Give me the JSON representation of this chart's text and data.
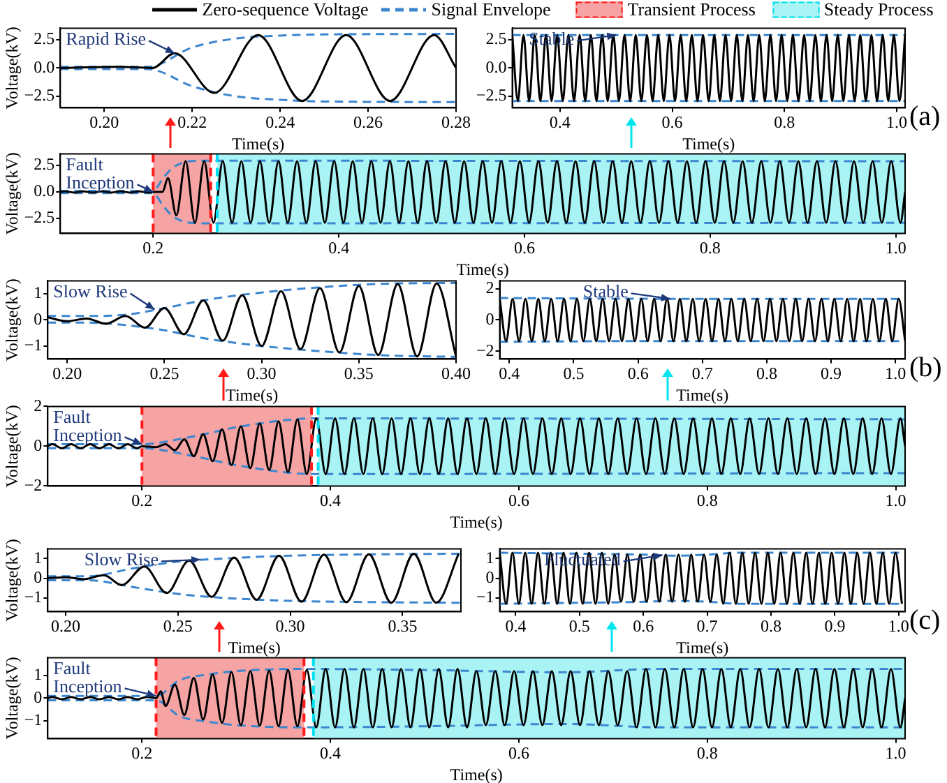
{
  "chart_data": [
    {
      "type": "line",
      "xlabel": "Time(s)",
      "ylabel": "Voltage(kV)",
      "xlim": [
        0.19,
        0.28
      ],
      "xticks": [
        {
          "value": 0.2,
          "label": "0.20"
        },
        {
          "value": 0.22,
          "label": "0.22"
        },
        {
          "value": 0.24,
          "label": "0.24"
        },
        {
          "value": 0.26,
          "label": "0.26"
        },
        {
          "value": 0.28,
          "label": "0.28"
        }
      ],
      "ylim": [
        -3.5,
        3.5
      ],
      "yticks": [
        {
          "value": -2.5,
          "label": "−2.5"
        },
        {
          "value": 0,
          "label": "0.0"
        },
        2.5
      ],
      "series": [
        {
          "color": "#000000",
          "x": [
            0.19,
            0.203,
            0.211,
            0.216,
            0.225,
            0.235,
            0.245,
            0.255,
            0.265,
            0.275,
            0.28
          ],
          "values": [
            0,
            0.1,
            0,
            1.3,
            -2.2,
            2.9,
            -2.9,
            2.9,
            -2.9,
            2.9,
            0
          ]
        },
        {
          "color": "#3b86cf",
          "line_style": "dashed",
          "x": [
            0.19,
            0.21,
            0.22,
            0.23,
            0.24,
            0.25,
            0.28
          ],
          "values": [
            0.1,
            0.1,
            1.8,
            2.6,
            2.85,
            2.95,
            3.0
          ]
        },
        {
          "color": "#3b86cf",
          "line_style": "dashed",
          "x": [
            0.19,
            0.21,
            0.22,
            0.23,
            0.24,
            0.25,
            0.28
          ],
          "values": [
            -0.1,
            -0.1,
            -1.6,
            -2.5,
            -2.8,
            -2.95,
            -3.0
          ]
        }
      ],
      "annotations": [
        {
          "text": "Rapid Rise",
          "x": 0.216,
          "y": 1.3
        }
      ]
    },
    {
      "type": "line",
      "xlabel": "Time(s)",
      "xlim": [
        0.315,
        1.015
      ],
      "xticks": [
        0.4,
        0.6,
        0.8,
        {
          "value": 1,
          "label": "1.0"
        }
      ],
      "ylim": [
        -3.5,
        3.5
      ],
      "yticks": [
        {
          "value": -2.5,
          "label": "−2.5"
        },
        {
          "value": 0,
          "label": "0.0"
        },
        2.5
      ],
      "series": [
        {
          "color": "#000000",
          "x": [
            0.315,
            0.325,
            0.335,
            0.345,
            0.355,
            0.365,
            0.375,
            0.385,
            0.395,
            0.405,
            0.415,
            0.425,
            0.435,
            0.445,
            0.455,
            0.465,
            0.475,
            0.485,
            0.495,
            0.505,
            0.515,
            0.525,
            0.535,
            0.545,
            0.555,
            0.565,
            0.575,
            0.585,
            0.595,
            0.605,
            0.615,
            0.625,
            0.635,
            0.645,
            0.655,
            0.665,
            0.675,
            0.685,
            0.695,
            0.705,
            0.715,
            0.725,
            0.735,
            0.745,
            0.755,
            0.765,
            0.775,
            0.785,
            0.795,
            0.805,
            0.815,
            0.825,
            0.835,
            0.845,
            0.855,
            0.865,
            0.875,
            0.885,
            0.895,
            0.905,
            0.915,
            0.925,
            0.935,
            0.945,
            0.955,
            0.965,
            0.975,
            0.985,
            0.995,
            1.005,
            1.015
          ],
          "values": [
            2.9,
            -2.9,
            2.9,
            -2.9,
            2.9,
            -2.9,
            2.9,
            -2.9,
            2.9,
            -2.9,
            2.9,
            -2.9,
            2.9,
            -2.9,
            2.9,
            -2.9,
            2.9,
            -2.9,
            2.9,
            -2.9,
            2.9,
            -2.9,
            2.9,
            -2.9,
            2.9,
            -2.9,
            2.9,
            -2.9,
            2.9,
            -2.9,
            2.9,
            -2.9,
            2.9,
            -2.9,
            2.9,
            -2.9,
            2.9,
            -2.9,
            2.9,
            -2.9,
            2.9,
            -2.9,
            2.9,
            -2.9,
            2.9,
            -2.9,
            2.9,
            -2.9,
            2.9,
            -2.9,
            2.9,
            -2.9,
            2.9,
            -2.9,
            2.9,
            -2.9,
            2.9,
            -2.9,
            2.9,
            -2.9,
            2.9,
            -2.9,
            2.9,
            -2.9,
            2.9,
            -2.9,
            2.9,
            -2.9,
            2.9,
            -2.9,
            2.9
          ]
        },
        {
          "color": "#3b86cf",
          "line_style": "dashed",
          "x": [
            0.315,
            1.015
          ],
          "values": [
            2.9,
            2.9
          ]
        },
        {
          "color": "#3b86cf",
          "line_style": "dashed",
          "x": [
            0.315,
            1.015
          ],
          "values": [
            -2.9,
            -2.9
          ]
        }
      ],
      "annotations": [
        {
          "text": "Stable",
          "x": 0.5,
          "y": 2.9
        },
        "(a)"
      ]
    },
    {
      "type": "line",
      "xlabel": "Time(s)",
      "ylabel": "Voltage(kV)",
      "legend": "top",
      "xlim": [
        0.1,
        1.01
      ],
      "xticks": [
        0.2,
        0.4,
        0.6,
        0.8,
        {
          "value": 1,
          "label": "1.0"
        }
      ],
      "ylim": [
        -3.9,
        3.6
      ],
      "yticks": [
        {
          "value": -2.5,
          "label": "−2.5"
        },
        {
          "value": 0,
          "label": "0.0"
        },
        2.5
      ],
      "bands": [
        {
          "axis": "x",
          "from": 0.2,
          "to": 0.262,
          "label": "Transient Process",
          "color": "#f5a3a3"
        },
        {
          "axis": "x",
          "from": 0.269,
          "to": 1.01,
          "label": "Steady Process",
          "color": "#aaf3f5"
        }
      ],
      "ref_lines": [
        {
          "axis": "x",
          "value": 0.2,
          "color": "#ff1a1a",
          "line_style": "dashed"
        },
        {
          "axis": "x",
          "value": 0.262,
          "color": "#ff1a1a",
          "line_style": "dashed"
        },
        {
          "axis": "x",
          "value": 0.269,
          "color": "#00e0f0",
          "line_style": "dashed"
        }
      ],
      "series": [
        {
          "name": "Zero-sequence Voltage",
          "color": "#000000",
          "x": [
            0.1,
            0.105,
            0.115,
            0.125,
            0.135,
            0.145,
            0.155,
            0.165,
            0.175,
            0.185,
            0.195,
            0.2,
            0.21,
            0.216,
            0.225,
            0.235,
            0.245,
            0.255,
            0.265,
            0.275,
            0.285,
            0.295,
            0.305,
            0.315,
            0.325,
            0.335,
            0.345,
            0.355,
            0.365,
            0.375,
            0.385,
            0.395,
            0.405,
            0.415,
            0.425,
            0.435,
            0.445,
            0.455,
            0.465,
            0.475,
            0.485,
            0.495,
            0.505,
            0.515,
            0.525,
            0.535,
            0.545,
            0.555,
            0.565,
            0.575,
            0.585,
            0.595,
            0.605,
            0.615,
            0.625,
            0.635,
            0.645,
            0.655,
            0.665,
            0.675,
            0.685,
            0.695,
            0.705,
            0.715,
            0.725,
            0.735,
            0.745,
            0.755,
            0.765,
            0.775,
            0.785,
            0.795,
            0.805,
            0.815,
            0.825,
            0.835,
            0.845,
            0.855,
            0.865,
            0.875,
            0.885,
            0.895,
            0.905,
            0.915,
            0.925,
            0.935,
            0.945,
            0.955,
            0.965,
            0.975,
            0.985,
            0.995,
            1.005,
            1.01
          ],
          "values": [
            0,
            0.05,
            -0.05,
            0.05,
            -0.05,
            0.05,
            -0.05,
            0.05,
            -0.05,
            0.05,
            -0.05,
            0,
            0,
            1.3,
            -2.2,
            2.9,
            -2.9,
            2.9,
            -2.9,
            2.9,
            -2.9,
            2.9,
            -2.9,
            2.9,
            -2.9,
            2.9,
            -2.9,
            2.9,
            -2.9,
            2.9,
            -2.9,
            2.9,
            -2.9,
            2.9,
            -2.9,
            2.9,
            -2.9,
            2.9,
            -2.9,
            2.9,
            -2.9,
            2.9,
            -2.9,
            2.9,
            -2.9,
            2.9,
            -2.9,
            2.9,
            -2.9,
            2.9,
            -2.9,
            2.9,
            -2.9,
            2.9,
            -2.9,
            2.9,
            -2.9,
            2.9,
            -2.9,
            2.9,
            -2.9,
            2.9,
            -2.9,
            2.9,
            -2.9,
            2.9,
            -2.9,
            2.9,
            -2.9,
            2.9,
            -2.9,
            2.9,
            -2.9,
            2.9,
            -2.9,
            2.9,
            -2.9,
            2.9,
            -2.9,
            2.9,
            -2.9,
            2.9,
            -2.9,
            2.9,
            -2.9,
            2.9,
            -2.9,
            2.9,
            -2.9,
            2.9,
            -2.9,
            2.9,
            -2.9,
            0
          ]
        },
        {
          "name": "Signal Envelope",
          "color": "#3b86cf",
          "line_style": "dashed",
          "x": [
            0.1,
            0.2,
            0.21,
            0.22,
            0.23,
            0.24,
            0.26,
            1.01
          ],
          "values": [
            0.1,
            0.1,
            1.2,
            2.2,
            2.7,
            2.9,
            2.95,
            2.9
          ]
        },
        {
          "color": "#3b86cf",
          "line_style": "dashed",
          "x": [
            0.1,
            0.2,
            0.21,
            0.22,
            0.23,
            0.24,
            0.26,
            1.01
          ],
          "values": [
            -0.1,
            -0.1,
            -1.2,
            -2.2,
            -2.7,
            -2.9,
            -2.95,
            -2.9
          ]
        }
      ],
      "annotations": [
        {
          "text": "Fault Inception",
          "x": 0.2,
          "y": 0
        }
      ]
    },
    {
      "type": "line",
      "xlabel": "Time(s)",
      "ylabel": "Voltage(kV)",
      "xlim": [
        0.19,
        0.4
      ],
      "xticks": [
        {
          "value": 0.2,
          "label": "0.20"
        },
        {
          "value": 0.25,
          "label": "0.25"
        },
        {
          "value": 0.3,
          "label": "0.30"
        },
        {
          "value": 0.35,
          "label": "0.35"
        },
        {
          "value": 0.4,
          "label": "0.40"
        }
      ],
      "ylim": [
        -1.5,
        1.5
      ],
      "yticks": [
        {
          "value": -1,
          "label": "−1"
        },
        0,
        1
      ],
      "series": [
        {
          "color": "#000000",
          "x": [
            0.19,
            0.2,
            0.21,
            0.22,
            0.23,
            0.24,
            0.25,
            0.26,
            0.27,
            0.28,
            0.29,
            0.3,
            0.31,
            0.32,
            0.33,
            0.34,
            0.35,
            0.36,
            0.37,
            0.38,
            0.39,
            0.4
          ],
          "values": [
            0.1,
            -0.05,
            0.05,
            -0.15,
            0.15,
            -0.3,
            0.45,
            -0.55,
            0.75,
            -0.8,
            0.95,
            -1.0,
            1.1,
            -1.12,
            1.22,
            -1.25,
            1.3,
            -1.35,
            1.38,
            -1.4,
            1.4,
            -1.4
          ]
        },
        {
          "color": "#3b86cf",
          "line_style": "dashed",
          "x": [
            0.19,
            0.21,
            0.23,
            0.25,
            0.27,
            0.3,
            0.33,
            0.36,
            0.4
          ],
          "values": [
            0.15,
            0.15,
            0.2,
            0.45,
            0.75,
            1.05,
            1.25,
            1.38,
            1.42
          ]
        },
        {
          "color": "#3b86cf",
          "line_style": "dashed",
          "x": [
            0.19,
            0.21,
            0.23,
            0.25,
            0.27,
            0.3,
            0.33,
            0.36,
            0.4
          ],
          "values": [
            -0.1,
            -0.1,
            -0.2,
            -0.4,
            -0.7,
            -1.0,
            -1.2,
            -1.35,
            -1.42
          ]
        }
      ],
      "annotations": [
        {
          "text": "Slow Rise",
          "x": 0.245,
          "y": 0.4
        }
      ]
    },
    {
      "type": "line",
      "xlabel": "Time(s)",
      "xlim": [
        0.385,
        1.015
      ],
      "xticks": [
        0.4,
        0.5,
        0.6,
        0.7,
        0.8,
        0.9,
        {
          "value": 1,
          "label": "1.0"
        }
      ],
      "ylim": [
        -2.5,
        2.5
      ],
      "yticks": [
        {
          "value": -2,
          "label": "−2"
        },
        0,
        2
      ],
      "series": [
        {
          "color": "#000000",
          "x": [
            0.385,
            0.395,
            0.405,
            0.415,
            0.425,
            0.435,
            0.445,
            0.455,
            0.465,
            0.475,
            0.485,
            0.495,
            0.505,
            0.515,
            0.525,
            0.535,
            0.545,
            0.555,
            0.565,
            0.575,
            0.585,
            0.595,
            0.605,
            0.615,
            0.625,
            0.635,
            0.645,
            0.655,
            0.665,
            0.675,
            0.685,
            0.695,
            0.705,
            0.715,
            0.725,
            0.735,
            0.745,
            0.755,
            0.765,
            0.775,
            0.785,
            0.795,
            0.805,
            0.815,
            0.825,
            0.835,
            0.845,
            0.855,
            0.865,
            0.875,
            0.885,
            0.895,
            0.905,
            0.915,
            0.925,
            0.935,
            0.945,
            0.955,
            0.965,
            0.975,
            0.985,
            0.995,
            1.005,
            1.015
          ],
          "values": [
            1.35,
            -1.35,
            1.35,
            -1.35,
            1.35,
            -1.35,
            1.35,
            -1.35,
            1.35,
            -1.35,
            1.35,
            -1.35,
            1.35,
            -1.35,
            1.35,
            -1.35,
            1.35,
            -1.35,
            1.35,
            -1.35,
            1.35,
            -1.35,
            1.35,
            -1.35,
            1.35,
            -1.35,
            1.35,
            -1.35,
            1.35,
            -1.35,
            1.35,
            -1.35,
            1.35,
            -1.35,
            1.35,
            -1.35,
            1.35,
            -1.35,
            1.35,
            -1.35,
            1.35,
            -1.35,
            1.35,
            -1.35,
            1.35,
            -1.35,
            1.35,
            -1.35,
            1.35,
            -1.35,
            1.35,
            -1.35,
            1.35,
            -1.35,
            1.35,
            -1.35,
            1.35,
            -1.35,
            1.35,
            -1.35,
            1.35,
            -1.35,
            1.35,
            -1.35
          ]
        },
        {
          "color": "#3b86cf",
          "line_style": "dashed",
          "x": [
            0.385,
            0.65,
            1.015
          ],
          "values": [
            1.4,
            1.35,
            1.35
          ]
        },
        {
          "color": "#3b86cf",
          "line_style": "dashed",
          "x": [
            0.385,
            0.65,
            1.015
          ],
          "values": [
            -1.4,
            -1.35,
            -1.35
          ]
        }
      ],
      "annotations": [
        {
          "text": "Stable",
          "x": 0.65,
          "y": 1.35
        },
        "(b)"
      ]
    },
    {
      "type": "line",
      "xlabel": "Time(s)",
      "ylabel": "Voltage(kV)",
      "xlim": [
        0.1,
        1.01
      ],
      "xticks": [
        0.2,
        0.4,
        0.6,
        0.8,
        {
          "value": 1,
          "label": "1.0"
        }
      ],
      "ylim": [
        -2,
        2
      ],
      "yticks": [
        {
          "value": -2,
          "label": "−2"
        },
        0,
        2
      ],
      "bands": [
        {
          "axis": "x",
          "from": 0.2,
          "to": 0.38,
          "color": "#f5a3a3"
        },
        {
          "axis": "x",
          "from": 0.387,
          "to": 1.01,
          "color": "#aaf3f5"
        }
      ],
      "ref_lines": [
        {
          "axis": "x",
          "value": 0.2,
          "color": "#ff1a1a",
          "line_style": "dashed"
        },
        {
          "axis": "x",
          "value": 0.38,
          "color": "#ff1a1a",
          "line_style": "dashed"
        },
        {
          "axis": "x",
          "value": 0.387,
          "color": "#00e0f0",
          "line_style": "dashed"
        }
      ],
      "series": [
        {
          "color": "#000000",
          "x": [
            0.1,
            0.105,
            0.115,
            0.125,
            0.135,
            0.145,
            0.155,
            0.165,
            0.175,
            0.185,
            0.195,
            0.2,
            0.215,
            0.225,
            0.235,
            0.245,
            0.255,
            0.265,
            0.275,
            0.285,
            0.295,
            0.305,
            0.315,
            0.325,
            0.335,
            0.345,
            0.355,
            0.365,
            0.375,
            0.385,
            0.395,
            0.405,
            0.415,
            0.425,
            0.435,
            0.445,
            0.455,
            0.465,
            0.475,
            0.485,
            0.495,
            0.505,
            0.515,
            0.525,
            0.535,
            0.545,
            0.555,
            0.565,
            0.575,
            0.585,
            0.595,
            0.605,
            0.615,
            0.625,
            0.635,
            0.645,
            0.655,
            0.665,
            0.675,
            0.685,
            0.695,
            0.705,
            0.715,
            0.725,
            0.735,
            0.745,
            0.755,
            0.765,
            0.775,
            0.785,
            0.795,
            0.805,
            0.815,
            0.825,
            0.835,
            0.845,
            0.855,
            0.865,
            0.875,
            0.885,
            0.895,
            0.905,
            0.915,
            0.925,
            0.935,
            0.945,
            0.955,
            0.965,
            0.975,
            0.985,
            0.995,
            1.005,
            1.01
          ],
          "values": [
            0,
            0.1,
            -0.1,
            0.1,
            -0.1,
            0.1,
            -0.1,
            0.1,
            -0.1,
            0.1,
            -0.1,
            0,
            -0.05,
            0.1,
            -0.2,
            0.35,
            -0.5,
            0.6,
            -0.75,
            0.85,
            -0.95,
            1.0,
            -1.1,
            1.15,
            -1.2,
            1.25,
            -1.3,
            1.35,
            -1.4,
            1.4,
            -1.4,
            1.4,
            -1.4,
            1.4,
            -1.4,
            1.4,
            -1.4,
            1.4,
            -1.4,
            1.4,
            -1.4,
            1.4,
            -1.4,
            1.4,
            -1.4,
            1.4,
            -1.4,
            1.4,
            -1.4,
            1.4,
            -1.4,
            1.4,
            -1.4,
            1.4,
            -1.4,
            1.4,
            -1.4,
            1.4,
            -1.4,
            1.4,
            -1.4,
            1.4,
            -1.4,
            1.4,
            -1.4,
            1.4,
            -1.4,
            1.4,
            -1.4,
            1.4,
            -1.4,
            1.4,
            -1.4,
            1.4,
            -1.4,
            1.4,
            -1.4,
            1.4,
            -1.4,
            1.4,
            -1.4,
            1.4,
            -1.4,
            1.4,
            -1.4,
            1.4,
            -1.4,
            1.4,
            -1.4,
            1.4,
            -1.4,
            1.4,
            0
          ]
        },
        {
          "color": "#3b86cf",
          "line_style": "dashed",
          "x": [
            0.1,
            0.2,
            0.25,
            0.3,
            0.35,
            0.38,
            1.01
          ],
          "values": [
            0.1,
            0.1,
            0.45,
            0.95,
            1.3,
            1.4,
            1.35
          ]
        },
        {
          "color": "#3b86cf",
          "line_style": "dashed",
          "x": [
            0.1,
            0.2,
            0.25,
            0.3,
            0.35,
            0.38,
            1.01
          ],
          "values": [
            -0.1,
            -0.1,
            -0.45,
            -0.95,
            -1.3,
            -1.4,
            -1.35
          ]
        }
      ],
      "annotations": [
        {
          "text": "Fault Inception",
          "x": 0.2,
          "y": 0.1
        }
      ]
    },
    {
      "type": "line",
      "xlabel": "Time(s)",
      "ylabel": "Voltage(kV)",
      "xlim": [
        0.192,
        0.376
      ],
      "xticks": [
        {
          "value": 0.2,
          "label": "0.20"
        },
        {
          "value": 0.25,
          "label": "0.25"
        },
        {
          "value": 0.3,
          "label": "0.30"
        },
        {
          "value": 0.35,
          "label": "0.35"
        }
      ],
      "ylim": [
        -1.7,
        1.5
      ],
      "yticks": [
        {
          "value": -1,
          "label": "−1"
        },
        0,
        1
      ],
      "series": [
        {
          "color": "#000000",
          "x": [
            0.192,
            0.2,
            0.208,
            0.217,
            0.225,
            0.235,
            0.245,
            0.255,
            0.265,
            0.275,
            0.285,
            0.295,
            0.305,
            0.315,
            0.325,
            0.335,
            0.345,
            0.355,
            0.365,
            0.375
          ],
          "values": [
            0,
            0.05,
            -0.05,
            0.15,
            -0.35,
            0.6,
            -0.75,
            0.9,
            -0.95,
            1.05,
            -1.1,
            1.15,
            -1.2,
            1.2,
            -1.22,
            1.22,
            -1.25,
            1.25,
            -1.25,
            1.25
          ]
        },
        {
          "color": "#3b86cf",
          "line_style": "dashed",
          "x": [
            0.192,
            0.21,
            0.23,
            0.25,
            0.27,
            0.3,
            0.34,
            0.376
          ],
          "values": [
            0.1,
            0.1,
            0.5,
            0.85,
            1.0,
            1.15,
            1.22,
            1.25
          ]
        },
        {
          "color": "#3b86cf",
          "line_style": "dashed",
          "x": [
            0.192,
            0.21,
            0.23,
            0.25,
            0.27,
            0.3,
            0.34,
            0.376
          ],
          "values": [
            -0.1,
            -0.1,
            -0.45,
            -0.8,
            -1.0,
            -1.15,
            -1.22,
            -1.25
          ]
        }
      ],
      "annotations": [
        {
          "text": "Slow Rise",
          "x": 0.26,
          "y": 0.95
        }
      ]
    },
    {
      "type": "line",
      "xlabel": "Time(s)",
      "xlim": [
        0.375,
        1.01
      ],
      "xticks": [
        0.4,
        0.5,
        0.6,
        0.7,
        0.8,
        0.9,
        {
          "value": 1,
          "label": "1.0"
        }
      ],
      "ylim": [
        -1.7,
        1.5
      ],
      "yticks": [
        {
          "value": -1,
          "label": "−1"
        },
        0,
        1
      ],
      "series": [
        {
          "color": "#000000",
          "x": [
            0.375,
            0.385,
            0.395,
            0.405,
            0.415,
            0.425,
            0.435,
            0.445,
            0.455,
            0.465,
            0.475,
            0.485,
            0.495,
            0.505,
            0.515,
            0.525,
            0.535,
            0.545,
            0.555,
            0.565,
            0.575,
            0.585,
            0.595,
            0.605,
            0.615,
            0.625,
            0.635,
            0.645,
            0.655,
            0.665,
            0.675,
            0.685,
            0.695,
            0.705,
            0.715,
            0.725,
            0.735,
            0.745,
            0.755,
            0.765,
            0.775,
            0.785,
            0.795,
            0.805,
            0.815,
            0.825,
            0.835,
            0.845,
            0.855,
            0.865,
            0.875,
            0.885,
            0.895,
            0.905,
            0.915,
            0.925,
            0.935,
            0.945,
            0.955,
            0.965,
            0.975,
            0.985,
            0.995,
            1.005
          ],
          "values": [
            1.3,
            -1.3,
            1.3,
            -1.3,
            1.3,
            -1.3,
            1.3,
            -1.3,
            1.3,
            -1.3,
            1.3,
            -1.3,
            1.3,
            -1.3,
            1.3,
            -1.3,
            1.3,
            -1.3,
            1.2,
            -1.2,
            1.2,
            -1.2,
            1.2,
            -1.2,
            1.2,
            -1.2,
            1.2,
            -1.2,
            1.2,
            -1.2,
            1.2,
            -1.2,
            1.2,
            -1.2,
            1.2,
            -1.3,
            1.3,
            -1.3,
            1.3,
            -1.3,
            1.3,
            -1.3,
            1.3,
            -1.3,
            1.3,
            -1.3,
            1.3,
            -1.3,
            1.3,
            -1.3,
            1.3,
            -1.3,
            1.3,
            -1.3,
            1.3,
            -1.3,
            1.3,
            -1.3,
            1.3,
            -1.3,
            1.3,
            -1.3,
            1.3,
            -1.3
          ]
        },
        {
          "color": "#3b86cf",
          "line_style": "dashed",
          "x": [
            0.375,
            0.5,
            0.6,
            0.65,
            0.7,
            0.75,
            1.01
          ],
          "values": [
            1.3,
            1.25,
            1.2,
            1.15,
            1.2,
            1.3,
            1.3
          ]
        },
        {
          "color": "#3b86cf",
          "line_style": "dashed",
          "x": [
            0.375,
            0.5,
            0.6,
            0.65,
            0.7,
            0.75,
            1.01
          ],
          "values": [
            -1.3,
            -1.25,
            -1.2,
            -1.15,
            -1.2,
            -1.3,
            -1.3
          ]
        }
      ],
      "annotations": [
        {
          "text": "Fluctuated",
          "x": 0.63,
          "y": 1.18
        },
        "(c)"
      ]
    },
    {
      "type": "line",
      "xlabel": "Time(s)",
      "ylabel": "Voltage(kV)",
      "xlim": [
        0.1,
        1.01
      ],
      "xticks": [
        0.2,
        0.4,
        0.6,
        0.8,
        {
          "value": 1,
          "label": "1.0"
        }
      ],
      "ylim": [
        -1.8,
        1.8
      ],
      "yticks": [
        {
          "value": -1,
          "label": "−1"
        },
        0,
        1
      ],
      "bands": [
        {
          "axis": "x",
          "from": 0.215,
          "to": 0.372,
          "color": "#f5a3a3"
        },
        {
          "axis": "x",
          "from": 0.382,
          "to": 1.01,
          "color": "#aaf3f5"
        }
      ],
      "ref_lines": [
        {
          "axis": "x",
          "value": 0.215,
          "color": "#ff1a1a",
          "line_style": "dashed"
        },
        {
          "axis": "x",
          "value": 0.372,
          "color": "#ff1a1a",
          "line_style": "dashed"
        },
        {
          "axis": "x",
          "value": 0.382,
          "color": "#00e0f0",
          "line_style": "dashed"
        }
      ],
      "series": [
        {
          "color": "#000000",
          "x": [
            0.1,
            0.105,
            0.115,
            0.125,
            0.135,
            0.145,
            0.155,
            0.165,
            0.175,
            0.185,
            0.195,
            0.205,
            0.215,
            0.22,
            0.225,
            0.235,
            0.245,
            0.255,
            0.265,
            0.275,
            0.285,
            0.295,
            0.305,
            0.315,
            0.325,
            0.335,
            0.345,
            0.355,
            0.365,
            0.375,
            0.385,
            0.395,
            0.405,
            0.415,
            0.425,
            0.435,
            0.445,
            0.455,
            0.465,
            0.475,
            0.485,
            0.495,
            0.505,
            0.515,
            0.525,
            0.535,
            0.545,
            0.555,
            0.565,
            0.575,
            0.585,
            0.595,
            0.605,
            0.615,
            0.625,
            0.635,
            0.645,
            0.655,
            0.665,
            0.675,
            0.685,
            0.695,
            0.705,
            0.715,
            0.725,
            0.735,
            0.745,
            0.755,
            0.765,
            0.775,
            0.785,
            0.795,
            0.805,
            0.815,
            0.825,
            0.835,
            0.845,
            0.855,
            0.865,
            0.875,
            0.885,
            0.895,
            0.905,
            0.915,
            0.925,
            0.935,
            0.945,
            0.955,
            0.965,
            0.975,
            0.985,
            0.995,
            1.005,
            1.01
          ],
          "values": [
            0,
            0.05,
            -0.05,
            0.05,
            -0.05,
            0.05,
            -0.05,
            0.05,
            -0.05,
            0.05,
            -0.05,
            0.05,
            0,
            0.3,
            -0.35,
            0.6,
            -0.75,
            0.9,
            -0.95,
            1.05,
            -1.1,
            1.15,
            -1.2,
            1.2,
            -1.22,
            1.22,
            -1.25,
            1.25,
            -1.25,
            1.25,
            -1.3,
            1.3,
            -1.3,
            1.3,
            -1.3,
            1.3,
            -1.3,
            1.3,
            -1.3,
            1.3,
            -1.3,
            1.3,
            -1.3,
            1.3,
            -1.3,
            1.3,
            -1.3,
            1.2,
            -1.2,
            1.2,
            -1.2,
            1.2,
            -1.2,
            1.2,
            -1.2,
            1.2,
            -1.2,
            1.2,
            -1.2,
            1.2,
            -1.2,
            1.2,
            -1.2,
            1.2,
            -1.3,
            1.3,
            -1.3,
            1.3,
            -1.3,
            1.3,
            -1.3,
            1.3,
            -1.3,
            1.3,
            -1.3,
            1.3,
            -1.3,
            1.3,
            -1.3,
            1.3,
            -1.3,
            1.3,
            -1.3,
            1.3,
            -1.3,
            1.3,
            -1.3,
            1.3,
            -1.3,
            1.3,
            -1.3,
            1.3,
            -1.3,
            0
          ]
        },
        {
          "color": "#3b86cf",
          "line_style": "dashed",
          "x": [
            0.1,
            0.215,
            0.24,
            0.27,
            0.3,
            0.37,
            0.5,
            0.65,
            0.75,
            1.01
          ],
          "values": [
            0.1,
            0.1,
            0.8,
            1.05,
            1.2,
            1.3,
            1.25,
            1.15,
            1.3,
            1.3
          ]
        },
        {
          "color": "#3b86cf",
          "line_style": "dashed",
          "x": [
            0.1,
            0.215,
            0.24,
            0.27,
            0.3,
            0.37,
            0.5,
            0.65,
            0.75,
            1.01
          ],
          "values": [
            -0.1,
            -0.1,
            -0.8,
            -1.05,
            -1.2,
            -1.3,
            -1.25,
            -1.15,
            -1.3,
            -1.3
          ]
        }
      ],
      "annotations": [
        {
          "text": "Fault Inception",
          "x": 0.215,
          "y": 0.1
        }
      ]
    }
  ]
}
